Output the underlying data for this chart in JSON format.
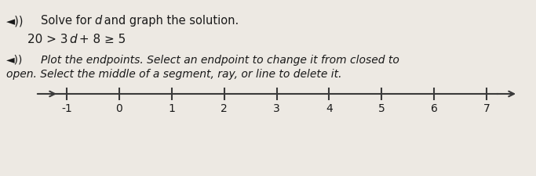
{
  "xmin": -2.5,
  "xmax": 8.5,
  "tick_positions": [
    -1,
    0,
    1,
    2,
    3,
    4,
    5,
    6,
    7
  ],
  "tick_labels": [
    "-1",
    "0",
    "1",
    "2",
    "3",
    "4",
    "5",
    "6",
    "7"
  ],
  "line_color": "#3a3a3a",
  "bg_color": "#ede9e3",
  "text_color": "#1a1a1a",
  "title_text1": "◄))  ",
  "title_text2": "Solve for ",
  "title_italic": "d",
  "title_text3": " and graph the solution.",
  "equation_text": "20 > 3",
  "equation_italic": "d",
  "equation_text2": " + 8 ≥ 5",
  "instr_text1": "◄))  Plot the endpoints. Select an endpoint to change it from closed to",
  "instr_text2": "open. Select the middle of a segment, ray, or line to delete it.",
  "font_size_title": 10.5,
  "font_size_eq": 11,
  "font_size_instr": 10,
  "font_size_tick": 10
}
